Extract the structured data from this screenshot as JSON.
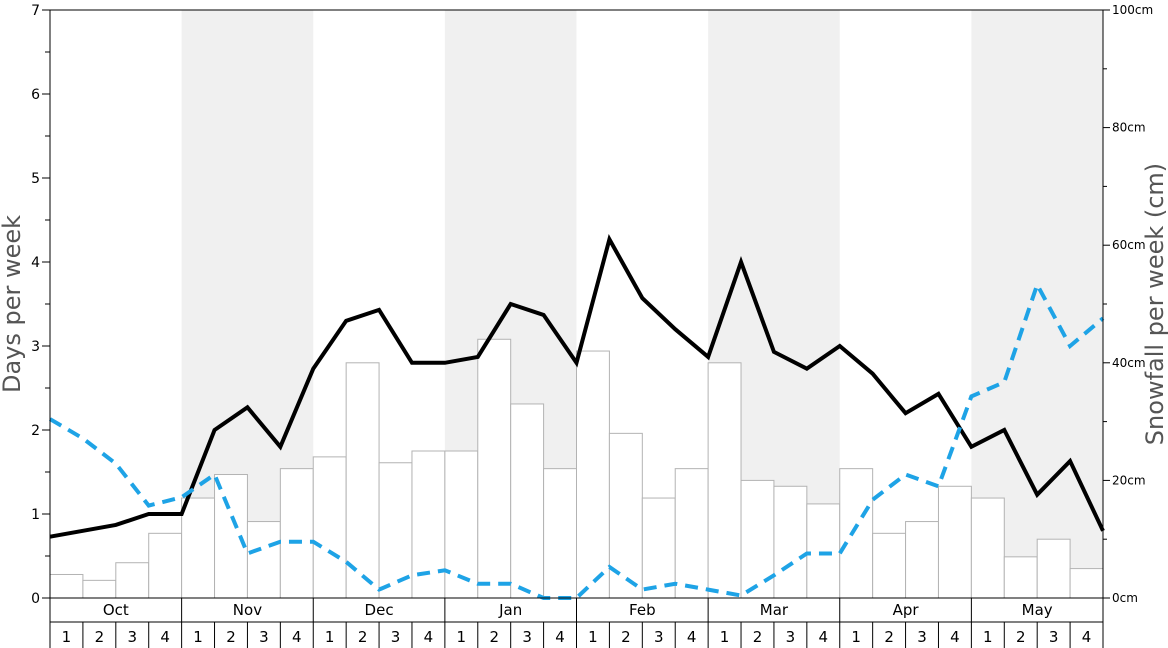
{
  "chart_data": {
    "type": "bar",
    "left_axis": {
      "label": "Days per week",
      "ylim": [
        0,
        7
      ],
      "ticks": [
        "0",
        "1",
        "2",
        "3",
        "4",
        "5",
        "6",
        "7"
      ]
    },
    "right_axis": {
      "label": "Snowfall per week (cm)",
      "ylim": [
        0,
        100
      ],
      "ticks": [
        "0cm",
        "20cm",
        "40cm",
        "60cm",
        "80cm",
        "100cm"
      ]
    },
    "months": [
      "Oct",
      "Nov",
      "Dec",
      "Jan",
      "Feb",
      "Mar",
      "Apr",
      "May"
    ],
    "weeks": [
      "1",
      "2",
      "3",
      "4"
    ],
    "shaded_months": [
      "Nov",
      "Jan",
      "Mar",
      "May"
    ],
    "grid": false,
    "colors": {
      "bar_fill": "#ffffff",
      "bar_stroke": "#b3b3b3",
      "shade": "#f0f0f0",
      "solid_line": "#000000",
      "dashed_line": "#1ea3e6",
      "axis_title": "#555555"
    },
    "series": [
      {
        "style": "bars",
        "axis": "right",
        "values": [
          4,
          3,
          6,
          11,
          17,
          21,
          13,
          22,
          24,
          40,
          23,
          25,
          25,
          44,
          33,
          22,
          42,
          28,
          17,
          22,
          40,
          20,
          19,
          16,
          22,
          11,
          13,
          19,
          17,
          7,
          10,
          5
        ]
      },
      {
        "style": "solid-line",
        "axis": "left",
        "values": [
          0.73,
          0.8,
          0.87,
          1.0,
          1.0,
          2.0,
          2.27,
          1.8,
          2.73,
          3.3,
          3.43,
          2.8,
          2.8,
          2.87,
          3.5,
          3.37,
          2.8,
          4.27,
          3.57,
          3.2,
          2.87,
          4.0,
          2.93,
          2.73,
          3.0,
          2.67,
          2.2,
          2.43,
          1.8,
          2.0,
          1.23,
          1.63,
          0.8
        ]
      },
      {
        "style": "dashed-line",
        "axis": "left",
        "values": [
          2.13,
          1.9,
          1.6,
          1.1,
          1.2,
          1.47,
          0.53,
          0.67,
          0.67,
          0.43,
          0.1,
          0.27,
          0.33,
          0.17,
          0.17,
          0.0,
          0.0,
          0.37,
          0.1,
          0.17,
          0.1,
          0.03,
          0.27,
          0.53,
          0.53,
          1.17,
          1.47,
          1.33,
          2.4,
          2.57,
          3.73,
          3.0,
          3.33
        ]
      }
    ]
  }
}
